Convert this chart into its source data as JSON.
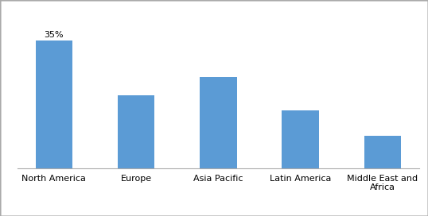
{
  "categories": [
    "North America",
    "Europe",
    "Asia Pacific",
    "Latin America",
    "Middle East and\nAfrica"
  ],
  "values": [
    35,
    20,
    25,
    16,
    9
  ],
  "bar_color": "#5b9bd5",
  "annotation": "35%",
  "annotation_index": 0,
  "ylim": [
    0,
    42
  ],
  "grid_color": "#d0d0d0",
  "background_color": "#ffffff",
  "bar_width": 0.45,
  "figsize": [
    5.38,
    2.72
  ],
  "dpi": 100,
  "border_color": "#aaaaaa",
  "annotation_fontsize": 8,
  "tick_fontsize": 8,
  "source_fontsize": 7
}
